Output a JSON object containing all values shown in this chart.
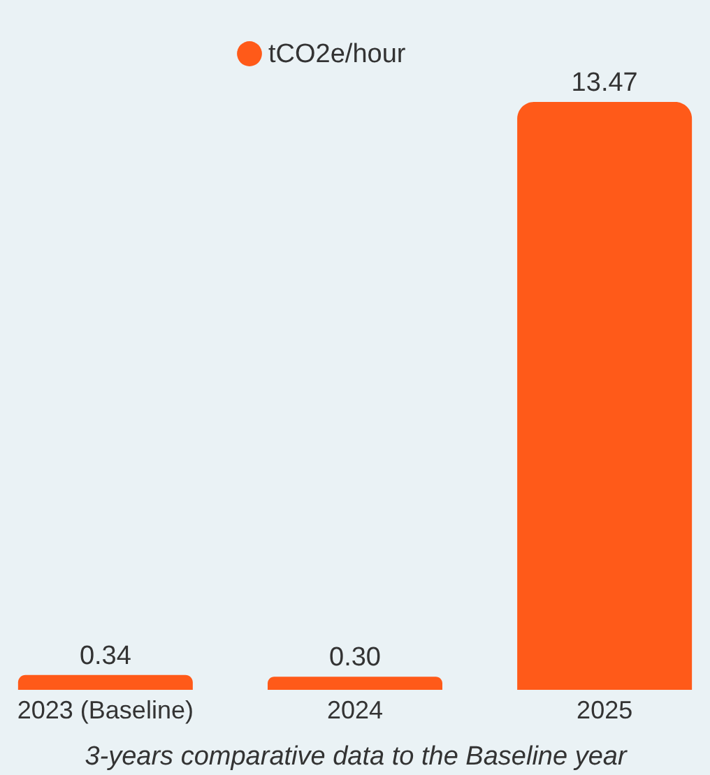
{
  "chart_data": {
    "type": "bar",
    "xlabel": "3-years comparative data to the Baseline year",
    "categories": [
      "2023 (Baseline)",
      "2024",
      "2025"
    ],
    "series": [
      {
        "name": "tCO2e/hour",
        "color": "#ff5a19",
        "values": [
          0.34,
          0.3,
          13.47
        ],
        "value_labels": [
          "0.34",
          "0.30",
          "13.47"
        ]
      }
    ],
    "legend": "top",
    "grid": false
  }
}
